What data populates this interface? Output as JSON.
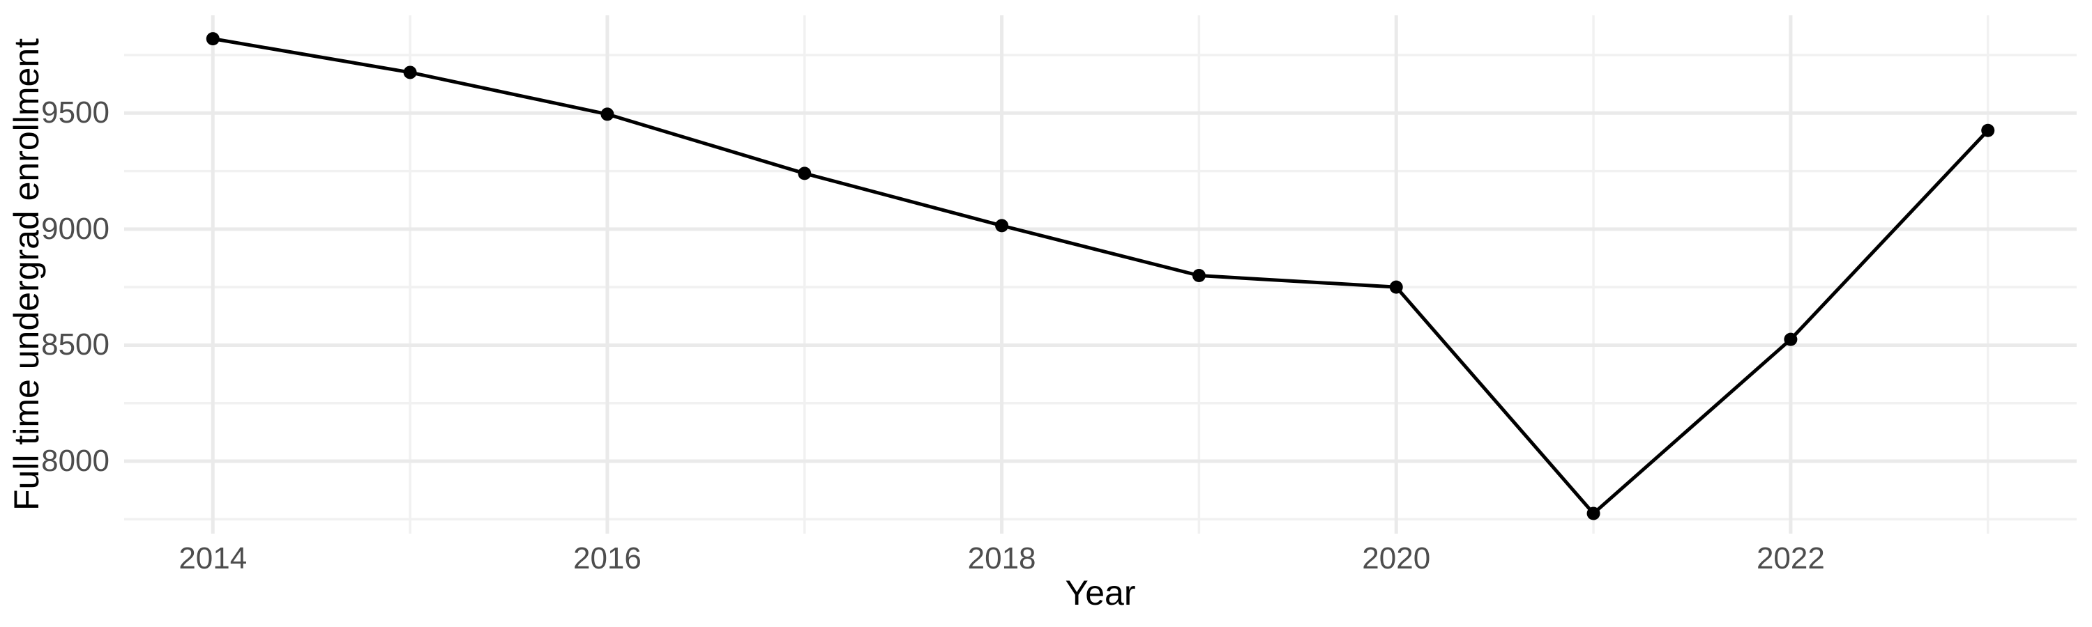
{
  "chart_data": {
    "type": "line",
    "title": "",
    "xlabel": "Year",
    "ylabel": "Full time undergrad enrollment",
    "series_name": "Full time undergrad enrollment",
    "x": [
      2014,
      2015,
      2016,
      2017,
      2018,
      2019,
      2020,
      2021,
      2022,
      2023
    ],
    "values": [
      9820,
      9675,
      9495,
      9240,
      9015,
      8800,
      8750,
      7775,
      8525,
      9425
    ],
    "xlim": [
      2013.55,
      2023.45
    ],
    "ylim": [
      7688,
      9921
    ],
    "x_major_gridlines": [
      2014,
      2016,
      2018,
      2020,
      2022
    ],
    "x_minor_gridlines": [
      2015,
      2017,
      2019,
      2021,
      2023
    ],
    "y_major_gridlines": [
      8000,
      8500,
      9000,
      9500
    ],
    "y_minor_gridlines": [
      7750,
      8250,
      8750,
      9250,
      9750
    ],
    "x_tick_labels": [
      "2014",
      "2016",
      "2018",
      "2020",
      "2022"
    ],
    "y_tick_labels": [
      "8000",
      "8500",
      "9000",
      "9500"
    ],
    "grid": true,
    "legend": "none",
    "style": {
      "line_color": "#000000",
      "point_color": "#000000",
      "line_width": 5,
      "point_radius": 9.5,
      "major_grid_color": "#eaeaea",
      "minor_grid_color": "#f1f1f1",
      "major_grid_width": 5,
      "minor_grid_width": 3.5,
      "tick_label_color": "#4d4d4d",
      "axis_title_color": "#000000",
      "background": "#ffffff"
    }
  }
}
